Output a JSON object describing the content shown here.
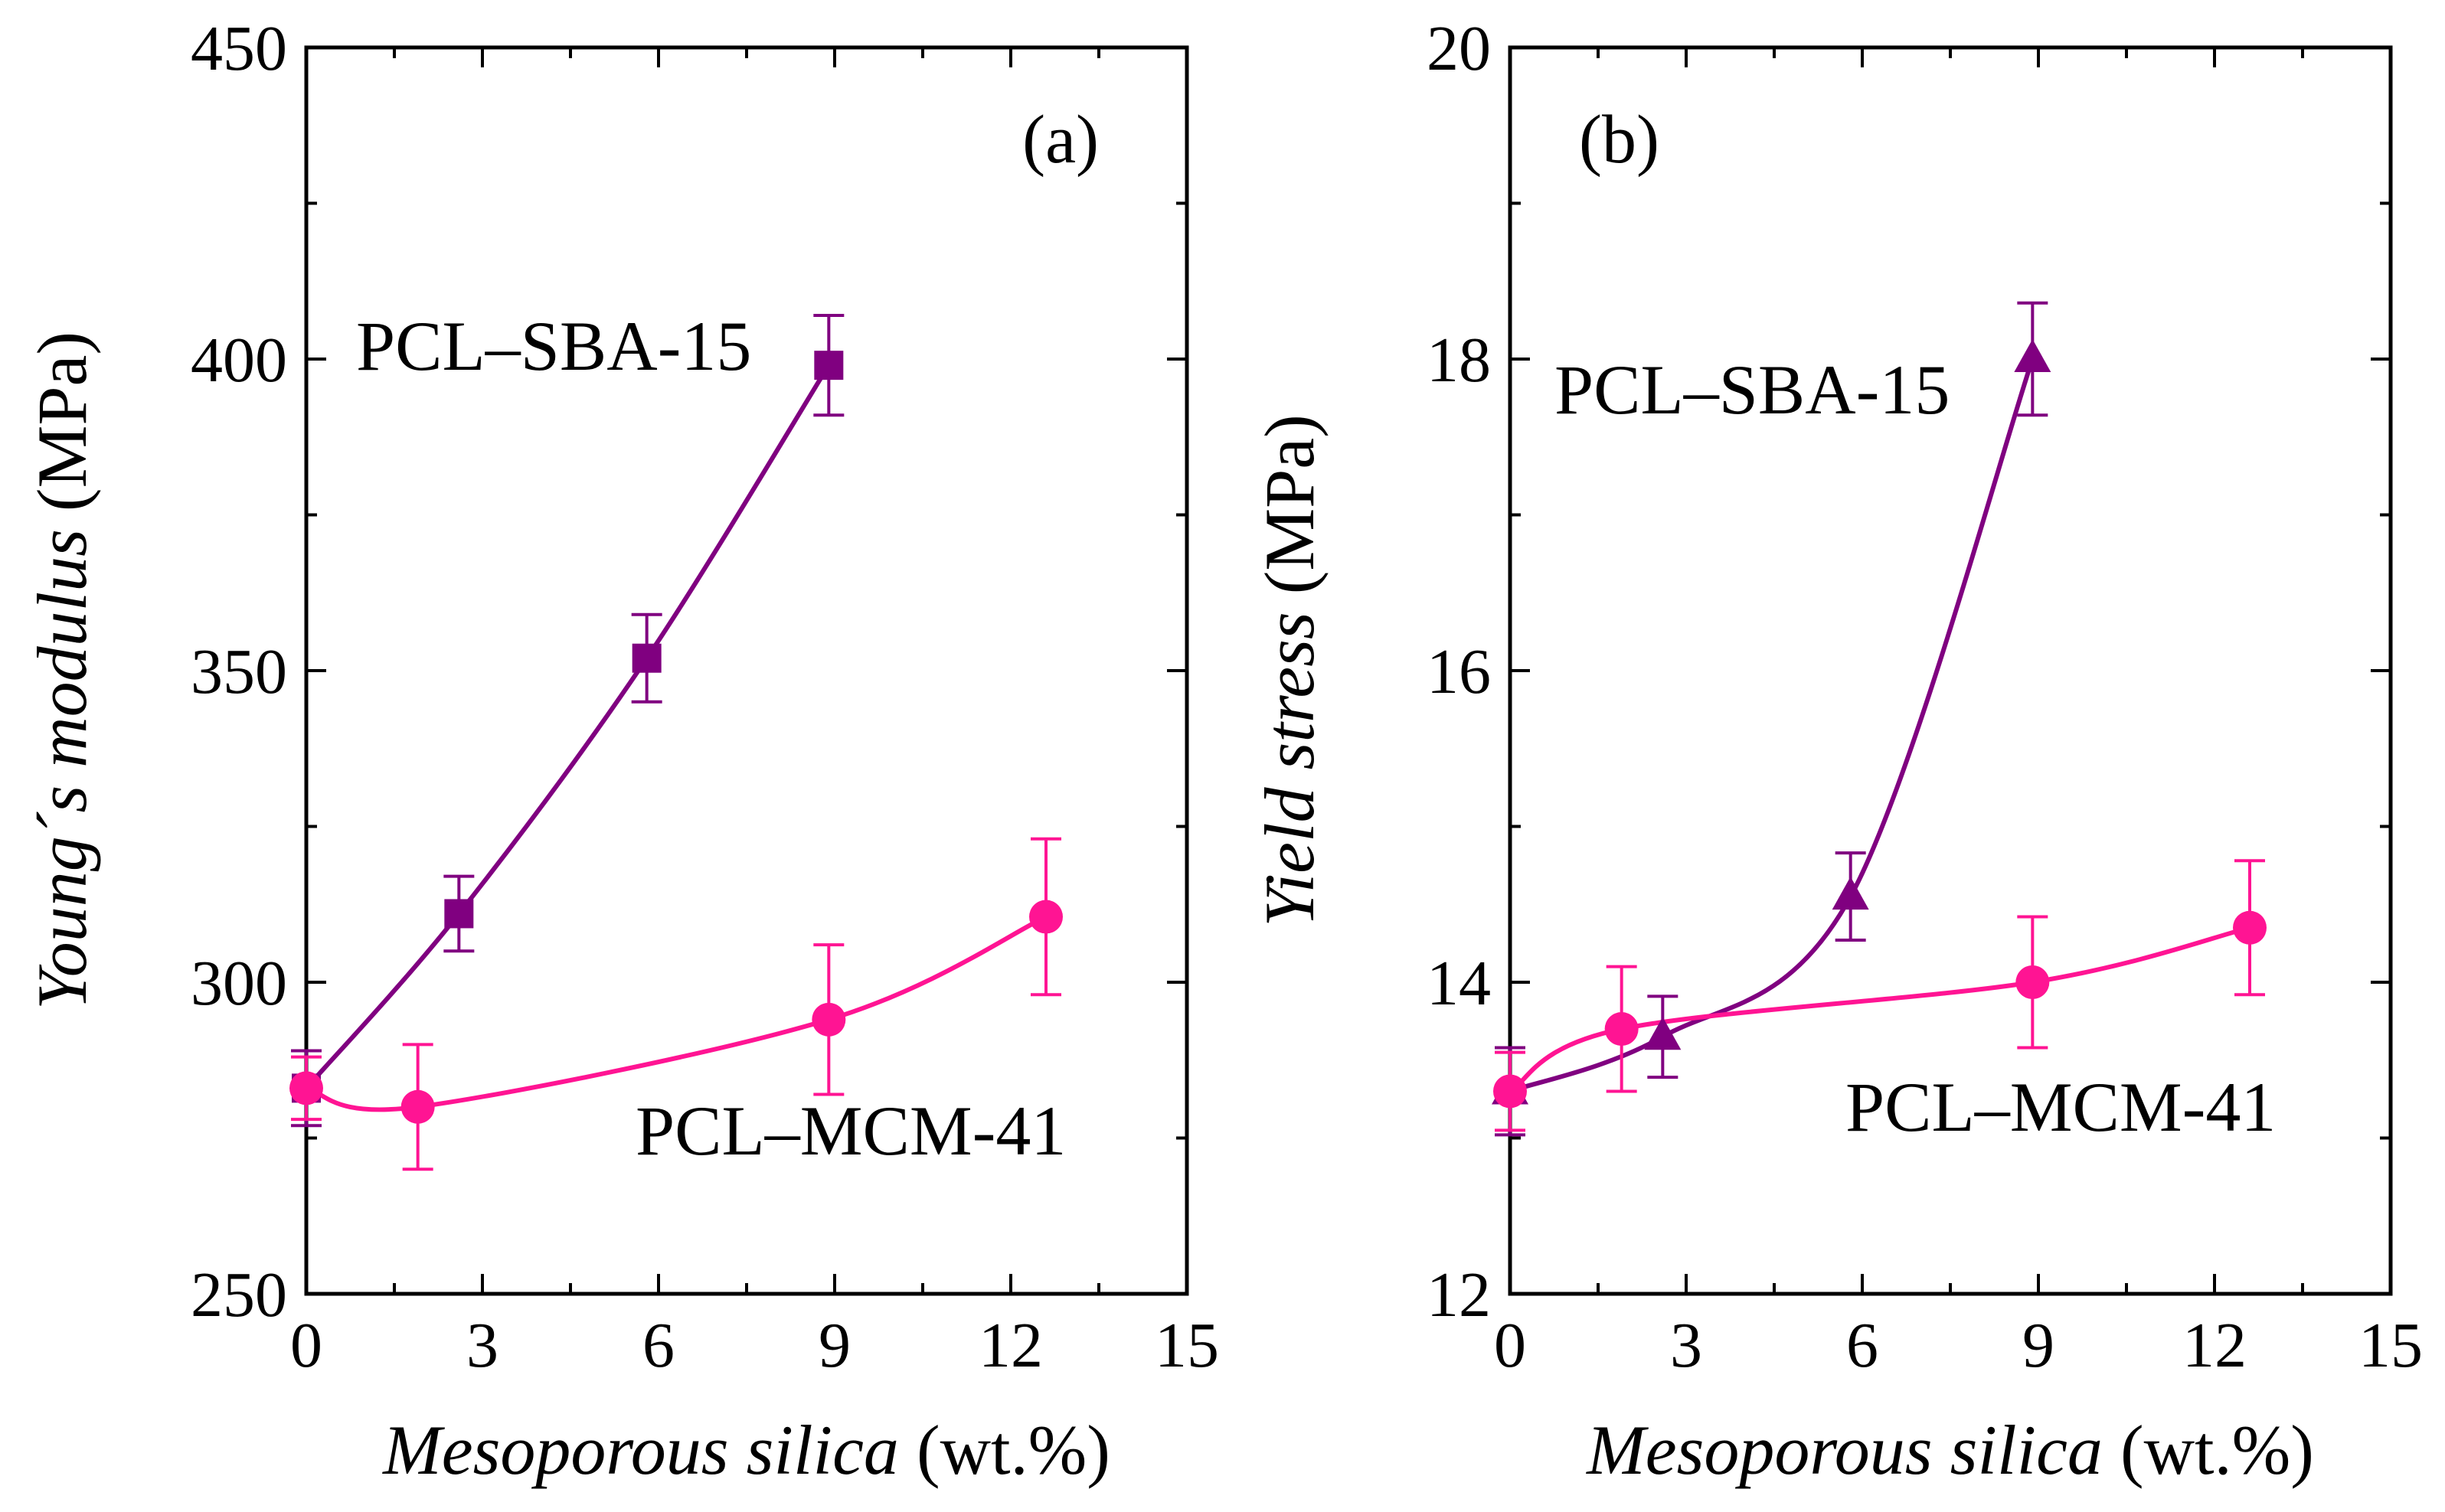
{
  "chart_data": [
    {
      "type": "line",
      "panel_label": "(a)",
      "ylabel_italic": "Young´s modulus",
      "ylabel_unit": " (MPa)",
      "xlabel_italic": "Mesoporous silica",
      "xlabel_unit": " (wt.%)",
      "xlim": [
        0,
        15
      ],
      "ylim": [
        250,
        450
      ],
      "xticks": [
        0,
        3,
        6,
        9,
        12,
        15
      ],
      "yticks": [
        250,
        300,
        350,
        400,
        450
      ],
      "grid": false,
      "series": [
        {
          "name": "PCL–SBA-15",
          "color": "#800080",
          "marker": "square",
          "label_position": "upper-left",
          "x": [
            0,
            2.6,
            5.8,
            8.9
          ],
          "y": [
            283,
            311,
            352,
            399
          ],
          "err": [
            6,
            6,
            7,
            8
          ]
        },
        {
          "name": "PCL–MCM-41",
          "color": "#FF1493",
          "marker": "circle",
          "label_position": "lower-right",
          "x": [
            0,
            1.9,
            8.9,
            12.6
          ],
          "y": [
            283,
            280,
            294,
            310.5
          ],
          "err": [
            5,
            10,
            12,
            12.5
          ]
        }
      ]
    },
    {
      "type": "line",
      "panel_label": "(b)",
      "ylabel_italic": "Yield stress",
      "ylabel_unit": " (MPa)",
      "xlabel_italic": "Mesoporous silica",
      "xlabel_unit": " (wt.%)",
      "xlim": [
        0,
        15
      ],
      "ylim": [
        12,
        20
      ],
      "xticks": [
        0,
        3,
        6,
        9,
        12,
        15
      ],
      "yticks": [
        12,
        14,
        16,
        18,
        20
      ],
      "grid": false,
      "series": [
        {
          "name": "PCL–SBA-15",
          "color": "#800080",
          "marker": "triangle",
          "label_position": "upper-left",
          "x": [
            0,
            2.6,
            5.8,
            8.9
          ],
          "y": [
            13.3,
            13.65,
            14.55,
            18.0
          ],
          "err": [
            0.28,
            0.26,
            0.28,
            0.36
          ]
        },
        {
          "name": "PCL–MCM-41",
          "color": "#FF1493",
          "marker": "circle",
          "label_position": "lower-right",
          "x": [
            0,
            1.9,
            8.9,
            12.6
          ],
          "y": [
            13.3,
            13.7,
            14.0,
            14.35
          ],
          "err": [
            0.25,
            0.4,
            0.42,
            0.43
          ]
        }
      ]
    }
  ]
}
